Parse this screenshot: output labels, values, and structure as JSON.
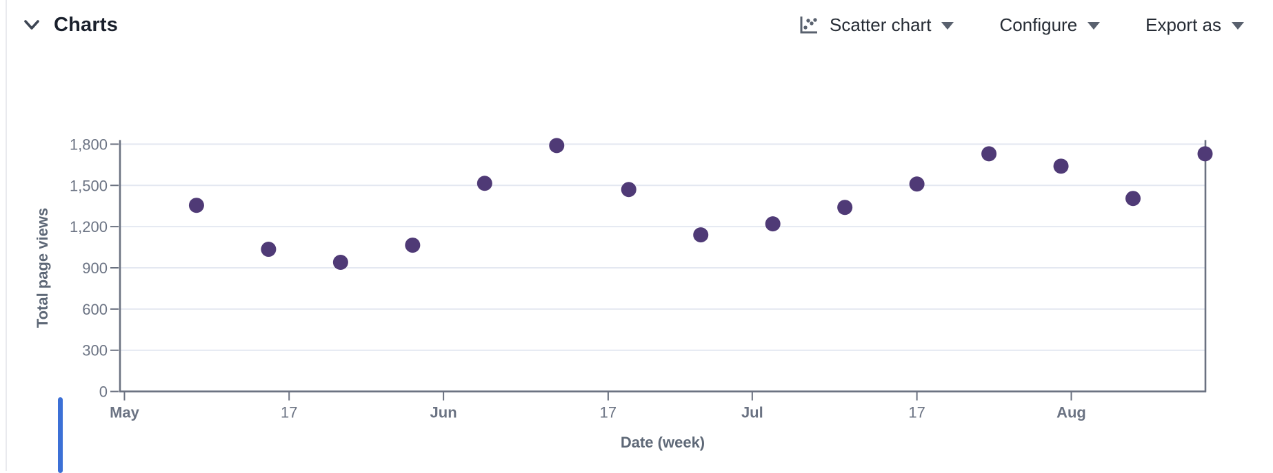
{
  "header": {
    "title": "Charts"
  },
  "controls": {
    "chart_type_label": "Scatter chart",
    "configure_label": "Configure",
    "export_label": "Export as"
  },
  "colors": {
    "point": "#4f3a76",
    "gridline": "#e4e8f1",
    "axis": "#6a7180",
    "tick_label": "#6b7383",
    "axis_title": "#5e6877",
    "accent_strip": "#3c70d6"
  },
  "chart_data": {
    "type": "scatter",
    "title": "Charts",
    "xlabel": "Date (week)",
    "ylabel": "Total page views",
    "x_labels": [
      "May 8",
      "May 15",
      "May 22",
      "May 29",
      "Jun 5",
      "Jun 12",
      "Jun 19",
      "Jun 26",
      "Jul 3",
      "Jul 10",
      "Jul 17",
      "Jul 24",
      "Jul 31",
      "Aug 7",
      "Aug 14"
    ],
    "x_days": [
      7,
      14,
      21,
      28,
      35,
      42,
      49,
      56,
      63,
      70,
      77,
      84,
      91,
      98,
      105
    ],
    "values": [
      1355,
      1035,
      940,
      1065,
      1515,
      1790,
      1470,
      1140,
      1220,
      1340,
      1510,
      1730,
      1640,
      1405,
      1730
    ],
    "xlim_days": [
      -0.5,
      105.1
    ],
    "ylim": [
      0,
      1800
    ],
    "ytick_values": [
      0,
      300,
      600,
      900,
      1200,
      1500,
      1800
    ],
    "ytick_labels": [
      "0",
      "300",
      "600",
      "900",
      "1,200",
      "1,500",
      "1,800"
    ],
    "xticks": [
      {
        "day": 0,
        "label": "May",
        "bold": true
      },
      {
        "day": 16,
        "label": "17",
        "bold": false
      },
      {
        "day": 31,
        "label": "Jun",
        "bold": true
      },
      {
        "day": 47,
        "label": "17",
        "bold": false
      },
      {
        "day": 61,
        "label": "Jul",
        "bold": true
      },
      {
        "day": 77,
        "label": "17",
        "bold": false
      },
      {
        "day": 92,
        "label": "Aug",
        "bold": true
      }
    ],
    "grid": true,
    "legend": "none"
  }
}
